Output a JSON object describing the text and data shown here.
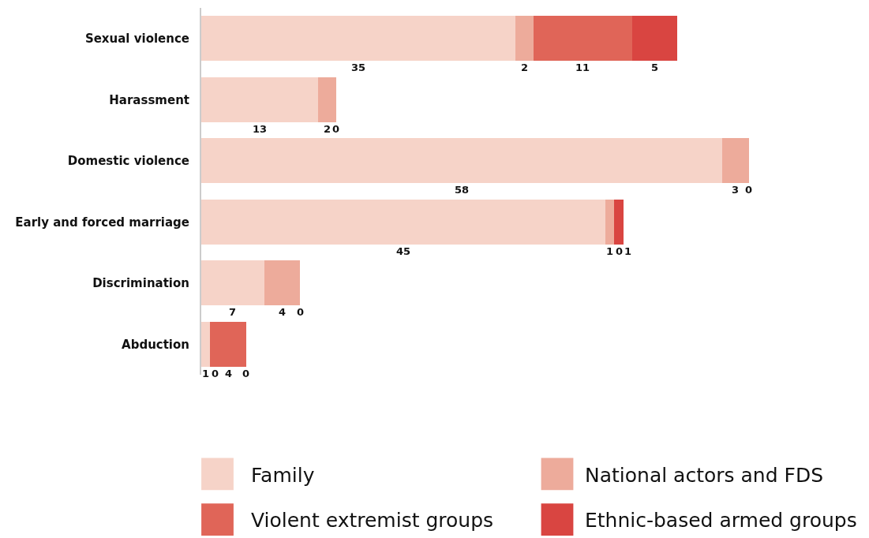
{
  "chart_data": {
    "type": "bar",
    "orientation": "horizontal",
    "stacked": true,
    "categories": [
      "Sexual violence",
      "Harassment",
      "Domestic violence",
      "Early and forced marriage",
      "Discrimination",
      "Abduction"
    ],
    "series": [
      {
        "name": "Family",
        "color": "#f6d3c8",
        "values": [
          35,
          13,
          58,
          45,
          7,
          1
        ]
      },
      {
        "name": "National actors and FDS",
        "color": "#edab9b",
        "values": [
          2,
          2,
          3,
          1,
          4,
          0
        ]
      },
      {
        "name": "Violent extremist groups",
        "color": "#e06558",
        "values": [
          11,
          0,
          0,
          0,
          0,
          4
        ]
      },
      {
        "name": "Ethnic-based armed groups",
        "color": "#d94541",
        "values": [
          5,
          null,
          null,
          1,
          null,
          0
        ]
      }
    ],
    "data_labels": true,
    "legend": "bottom",
    "tick_labels": "y"
  }
}
